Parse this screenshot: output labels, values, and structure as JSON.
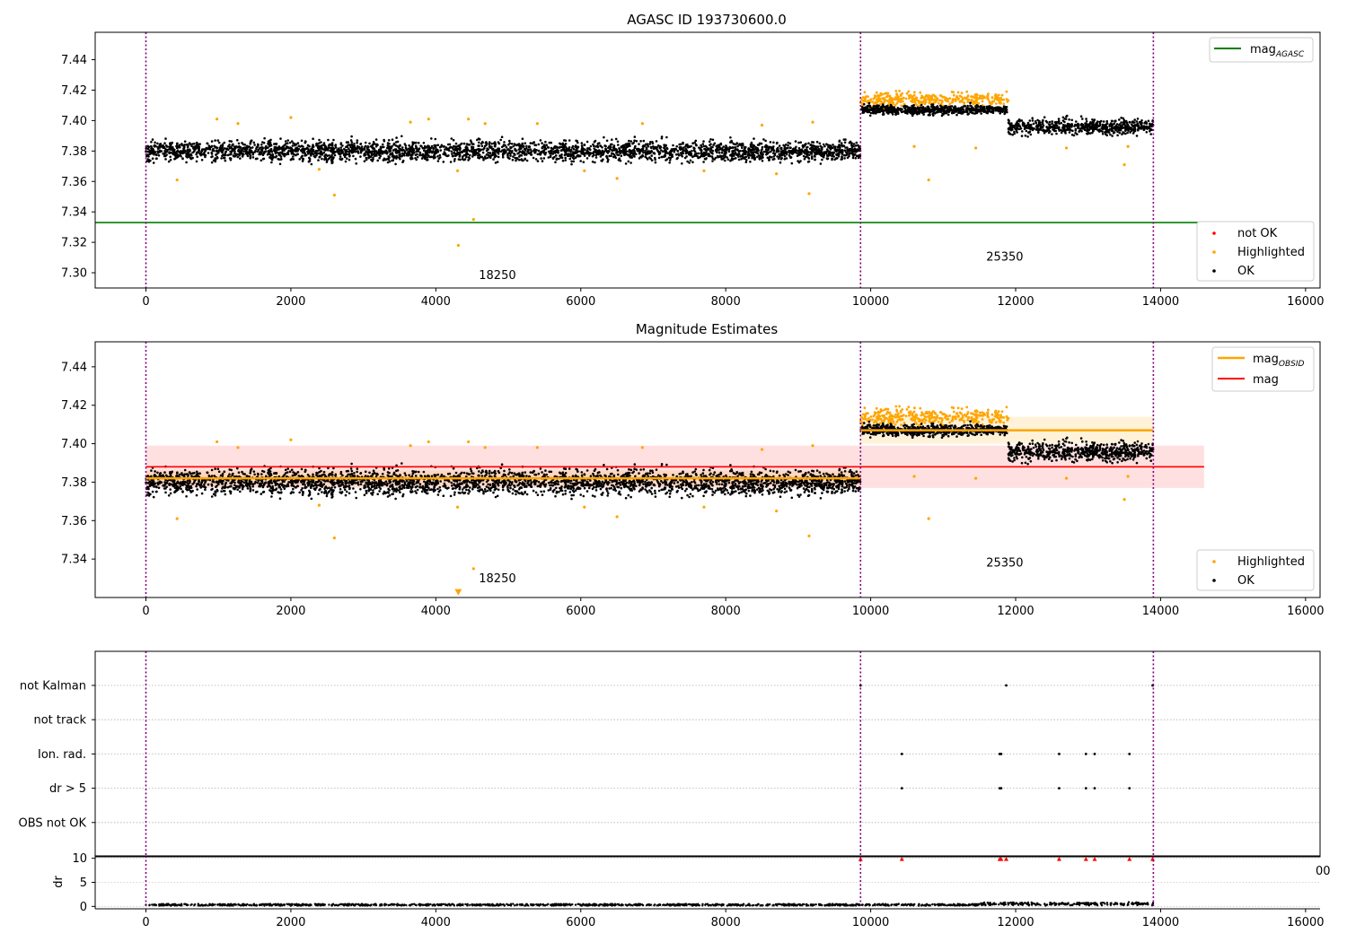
{
  "chart_data": [
    {
      "type": "scatter",
      "title": "AGASC ID 193730600.0",
      "xlim": [
        -700,
        16200
      ],
      "ylim": [
        7.29,
        7.458
      ],
      "xticks": [
        "0",
        "2000",
        "4000",
        "6000",
        "8000",
        "10000",
        "12000",
        "14000",
        "16000"
      ],
      "xtick_values": [
        0,
        2000,
        4000,
        6000,
        8000,
        10000,
        12000,
        14000,
        16000
      ],
      "yticks": [
        "7.30",
        "7.32",
        "7.34",
        "7.36",
        "7.38",
        "7.40",
        "7.42",
        "7.44"
      ],
      "ytick_values": [
        7.3,
        7.32,
        7.34,
        7.36,
        7.38,
        7.4,
        7.42,
        7.44
      ],
      "obsid_boundaries": [
        0,
        9860,
        13900
      ],
      "obsid_labels": [
        {
          "text": "18250",
          "x": 4850,
          "y": 7.296
        },
        {
          "text": "25350",
          "x": 11850,
          "y": 7.308
        }
      ],
      "mag_agasc": {
        "value": 7.333,
        "x_range": [
          0,
          14600
        ],
        "color": "#008000"
      },
      "segments": [
        {
          "x_start": 0,
          "x_end": 9860,
          "ok_center": 7.38,
          "ok_spread": 0.013
        },
        {
          "x_start": 9860,
          "x_end": 11900,
          "ok_center": 7.407,
          "ok_spread": 0.006,
          "highlight_center": 7.414,
          "highlight_spread": 0.008
        },
        {
          "x_start": 11900,
          "x_end": 13900,
          "ok_center": 7.396,
          "ok_spread": 0.01
        }
      ],
      "highlighted_outliers": [
        [
          430,
          7.361
        ],
        [
          980,
          7.401
        ],
        [
          1270,
          7.398
        ],
        [
          2000,
          7.402
        ],
        [
          2390,
          7.368
        ],
        [
          2600,
          7.351
        ],
        [
          3650,
          7.399
        ],
        [
          3900,
          7.401
        ],
        [
          4300,
          7.367
        ],
        [
          4310,
          7.318
        ],
        [
          4450,
          7.401
        ],
        [
          4520,
          7.335
        ],
        [
          4680,
          7.398
        ],
        [
          5400,
          7.398
        ],
        [
          6050,
          7.367
        ],
        [
          6500,
          7.362
        ],
        [
          6850,
          7.398
        ],
        [
          7700,
          7.367
        ],
        [
          8500,
          7.397
        ],
        [
          8700,
          7.365
        ],
        [
          9150,
          7.352
        ],
        [
          9200,
          7.399
        ],
        [
          10600,
          7.383
        ],
        [
          10800,
          7.361
        ],
        [
          11450,
          7.382
        ],
        [
          12700,
          7.382
        ],
        [
          13500,
          7.371
        ],
        [
          13550,
          7.383
        ]
      ],
      "legend_upper": [
        "mag_AGASC"
      ],
      "legend_lower": [
        "not OK",
        "Highlighted",
        "OK"
      ],
      "colors": {
        "ok": "#000000",
        "highlighted": "#ffa500",
        "not_ok": "#ff0000",
        "obsid_line": "#800080"
      }
    },
    {
      "type": "scatter",
      "title": "Magnitude Estimates",
      "xlim": [
        -700,
        16200
      ],
      "ylim": [
        7.32,
        7.453
      ],
      "xticks": [
        "0",
        "2000",
        "4000",
        "6000",
        "8000",
        "10000",
        "12000",
        "14000",
        "16000"
      ],
      "xtick_values": [
        0,
        2000,
        4000,
        6000,
        8000,
        10000,
        12000,
        14000,
        16000
      ],
      "yticks": [
        "7.34",
        "7.36",
        "7.38",
        "7.40",
        "7.42",
        "7.44"
      ],
      "ytick_values": [
        7.34,
        7.36,
        7.38,
        7.4,
        7.42,
        7.44
      ],
      "obsid_boundaries": [
        0,
        9860,
        13900
      ],
      "obsid_labels": [
        {
          "text": "18250",
          "x": 4850,
          "y": 7.328
        },
        {
          "text": "25350",
          "x": 11850,
          "y": 7.336
        }
      ],
      "mag": {
        "value": 7.388,
        "band": [
          7.377,
          7.399
        ],
        "x_range": [
          0,
          14600
        ],
        "color": "#ff0000"
      },
      "mag_obsid": [
        {
          "x_range": [
            0,
            9860
          ],
          "value": 7.382,
          "band": [
            7.378,
            7.386
          ]
        },
        {
          "x_range": [
            9860,
            13900
          ],
          "value": 7.407,
          "band": [
            7.4,
            7.414
          ]
        }
      ],
      "triangle_marker": [
        4310,
        7.323
      ],
      "legend_upper": [
        "mag_OBSID",
        "mag"
      ],
      "legend_lower": [
        "Highlighted",
        "OK"
      ],
      "colors": {
        "mag_obsid": "#ffa500"
      }
    },
    {
      "type": "scatter",
      "title": "",
      "rows": [
        "not Kalman",
        "not track",
        "Ion. rad.",
        "dr > 5",
        "OBS not OK"
      ],
      "events": {
        "not Kalman": [
          9860,
          11870,
          13890
        ],
        "not track": [],
        "Ion. rad.": [
          10430,
          11780,
          11800,
          12600,
          12970,
          13090,
          13570
        ],
        "dr > 5": [
          10430,
          11780,
          11800,
          12600,
          12970,
          13090,
          13570
        ],
        "OBS not OK": []
      },
      "xlim": [
        -700,
        16200
      ],
      "obsid_boundaries": [
        0,
        9860,
        13900
      ]
    },
    {
      "type": "scatter",
      "title": "",
      "ylabel": "dr",
      "ylim": [
        -0.5,
        10.5
      ],
      "yticks": [
        "0",
        "5",
        "10"
      ],
      "ytick_values": [
        0,
        5,
        10
      ],
      "xticks": [
        "0",
        "2000",
        "4000",
        "6000",
        "8000",
        "10000",
        "12000",
        "14000",
        "16000"
      ],
      "xtick_values": [
        0,
        2000,
        4000,
        6000,
        8000,
        10000,
        12000,
        14000,
        16000
      ],
      "xlim": [
        -700,
        16200
      ],
      "clipped_points": [
        9860,
        10430,
        11780,
        11800,
        11870,
        12600,
        12970,
        13090,
        13570,
        13890
      ],
      "stray_tick_label": "00"
    }
  ]
}
